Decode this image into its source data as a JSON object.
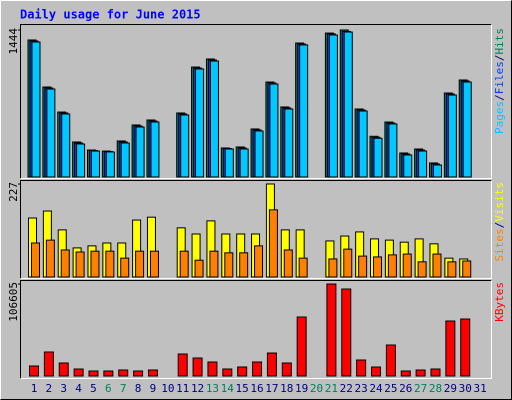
{
  "chart_data": [
    {
      "type": "bar",
      "title": "Daily usage for June 2015",
      "ylim": [
        0,
        1444
      ],
      "yticks": [
        1444
      ],
      "label_separator": "/",
      "series": [
        {
          "name": "Pages",
          "color": "#00c8ff",
          "values": [
            1326,
            864,
            619,
            324,
            255,
            246,
            334,
            491,
            540,
            0,
            609,
            1061,
            1139,
            275,
            275,
            452,
            913,
            668,
            1297,
            0,
            1395,
            1424,
            648,
            380,
            521,
            216,
            255,
            118,
            805,
            933,
            0
          ]
        },
        {
          "name": "Files",
          "color": "#0040ff",
          "values": [
            1336,
            874,
            629,
            334,
            260,
            250,
            344,
            501,
            550,
            0,
            619,
            1070,
            1149,
            280,
            285,
            462,
            923,
            678,
            1306,
            0,
            1405,
            1430,
            658,
            390,
            530,
            226,
            265,
            128,
            815,
            943,
            0
          ]
        },
        {
          "name": "Hits",
          "color": "#00805c",
          "values": [
            1346,
            884,
            638,
            344,
            265,
            255,
            354,
            511,
            560,
            0,
            629,
            1080,
            1159,
            285,
            295,
            472,
            933,
            688,
            1316,
            0,
            1414,
            1444,
            668,
            400,
            540,
            236,
            275,
            138,
            825,
            953,
            0
          ]
        }
      ]
    },
    {
      "type": "bar",
      "ylim": [
        0,
        227
      ],
      "yticks": [
        227
      ],
      "label_separator": "/",
      "series": [
        {
          "name": "Sites",
          "color": "#ff8000",
          "values": [
            83,
            90,
            66,
            61,
            63,
            63,
            46,
            63,
            63,
            0,
            63,
            41,
            63,
            59,
            59,
            76,
            164,
            66,
            46,
            0,
            44,
            68,
            51,
            49,
            54,
            56,
            37,
            56,
            37,
            39,
            0
          ]
        },
        {
          "name": "Visits",
          "color": "#ffff00",
          "values": [
            144,
            161,
            115,
            71,
            76,
            83,
            83,
            139,
            146,
            0,
            120,
            105,
            137,
            105,
            105,
            105,
            227,
            115,
            115,
            0,
            88,
            100,
            110,
            93,
            90,
            85,
            93,
            81,
            46,
            44,
            0
          ]
        }
      ]
    },
    {
      "type": "bar",
      "ylim": [
        0,
        106605
      ],
      "yticks": [
        106605
      ],
      "categories": [
        "1",
        "2",
        "3",
        "4",
        "5",
        "6",
        "7",
        "8",
        "9",
        "10",
        "11",
        "12",
        "13",
        "14",
        "15",
        "16",
        "17",
        "18",
        "19",
        "20",
        "21",
        "22",
        "23",
        "24",
        "25",
        "26",
        "27",
        "28",
        "29",
        "30",
        "31"
      ],
      "category_colors": [
        "#000080",
        "#000080",
        "#000080",
        "#000080",
        "#000080",
        "#00805c",
        "#00805c",
        "#000080",
        "#000080",
        "#000080",
        "#000080",
        "#000080",
        "#00805c",
        "#00805c",
        "#000080",
        "#000080",
        "#000080",
        "#000080",
        "#000080",
        "#00805c",
        "#00805c",
        "#000080",
        "#000080",
        "#000080",
        "#000080",
        "#000080",
        "#00805c",
        "#00805c",
        "#000080",
        "#000080",
        "#000080"
      ],
      "series": [
        {
          "name": "KBytes",
          "color": "#ff0000",
          "values": [
            11588,
            27810,
            15064,
            8111,
            5794,
            5794,
            6953,
            5794,
            6953,
            0,
            25493,
            20858,
            16222,
            8111,
            10429,
            16222,
            26651,
            15064,
            68367,
            0,
            106605,
            100811,
            18540,
            10429,
            35921,
            5794,
            6953,
            8111,
            63732,
            66049,
            0
          ]
        }
      ]
    }
  ]
}
